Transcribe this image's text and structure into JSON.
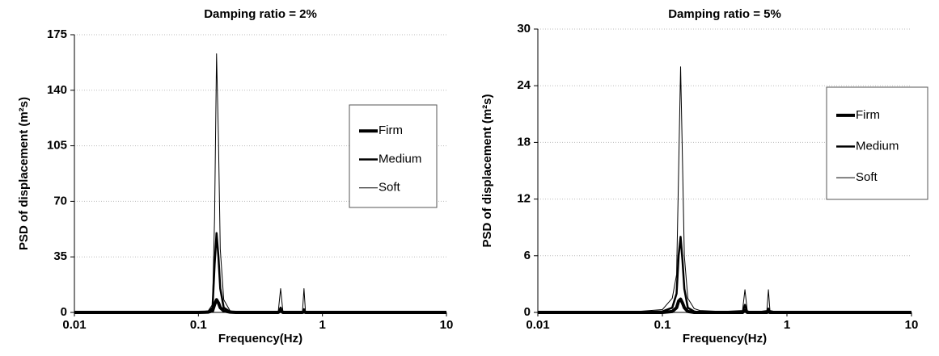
{
  "chart_data": [
    {
      "type": "line",
      "title": "Damping ratio = 2%",
      "x_label": "Frequency(Hz)",
      "y_label": "PSD of displacement (m²s)",
      "x_scale": "log",
      "xlim": [
        0.01,
        10
      ],
      "xticks": [
        0.01,
        0.1,
        1,
        10
      ],
      "ylim": [
        0,
        175
      ],
      "yticks": [
        0,
        35,
        70,
        105,
        140,
        175
      ],
      "grid": true,
      "legend": "center right",
      "x": [
        0.01,
        0.05,
        0.1,
        0.12,
        0.13,
        0.135,
        0.14,
        0.145,
        0.15,
        0.16,
        0.18,
        0.2,
        0.3,
        0.44,
        0.46,
        0.48,
        0.5,
        0.6,
        0.69,
        0.71,
        0.73,
        0.8,
        1,
        2,
        5,
        10
      ],
      "series": [
        {
          "name": "Firm",
          "color": "#000000",
          "line_width": 4,
          "values": [
            0,
            0,
            0,
            0.2,
            1,
            5,
            8,
            6,
            3,
            1,
            0.2,
            0,
            0,
            0,
            1,
            0,
            0,
            0,
            0,
            0.5,
            0,
            0,
            0,
            0,
            0,
            0
          ]
        },
        {
          "name": "Medium",
          "color": "#000000",
          "line_width": 2.5,
          "values": [
            0,
            0,
            0.1,
            0.5,
            3,
            30,
            50,
            35,
            15,
            3,
            0.5,
            0.1,
            0.1,
            0.1,
            3,
            0.2,
            0.1,
            0.1,
            0.1,
            2,
            0.1,
            0,
            0,
            0,
            0,
            0
          ]
        },
        {
          "name": "Soft",
          "color": "#000000",
          "line_width": 1,
          "values": [
            0,
            0,
            0.2,
            1,
            5,
            60,
            163,
            110,
            40,
            8,
            1,
            0.3,
            0.2,
            0.3,
            15,
            0.5,
            0.2,
            0.2,
            0.3,
            15,
            0.3,
            0.1,
            0.1,
            0,
            0,
            0
          ]
        }
      ]
    },
    {
      "type": "line",
      "title": "Damping ratio = 5%",
      "x_label": "Frequency(Hz)",
      "y_label": "PSD of displacement (m²s)",
      "x_scale": "log",
      "xlim": [
        0.01,
        10
      ],
      "xticks": [
        0.01,
        0.1,
        1,
        10
      ],
      "ylim": [
        0,
        30
      ],
      "yticks": [
        0,
        6,
        12,
        18,
        24,
        30
      ],
      "grid": true,
      "legend": "center right",
      "x": [
        0.01,
        0.05,
        0.1,
        0.12,
        0.13,
        0.135,
        0.14,
        0.145,
        0.15,
        0.16,
        0.18,
        0.2,
        0.3,
        0.44,
        0.46,
        0.48,
        0.5,
        0.6,
        0.69,
        0.71,
        0.73,
        0.8,
        1,
        2,
        5,
        10
      ],
      "series": [
        {
          "name": "Firm",
          "color": "#000000",
          "line_width": 4,
          "values": [
            0,
            0,
            0,
            0.1,
            0.5,
            1.2,
            1.4,
            1,
            0.5,
            0.1,
            0,
            0,
            0,
            0,
            0.2,
            0,
            0,
            0,
            0,
            0.1,
            0,
            0,
            0,
            0,
            0,
            0
          ]
        },
        {
          "name": "Medium",
          "color": "#000000",
          "line_width": 2.5,
          "values": [
            0,
            0,
            0.1,
            0.5,
            2,
            6,
            8,
            5.5,
            2.5,
            0.5,
            0.1,
            0,
            0,
            0,
            0.8,
            0,
            0,
            0,
            0,
            0.4,
            0,
            0,
            0,
            0,
            0,
            0
          ]
        },
        {
          "name": "Soft",
          "color": "#000000",
          "line_width": 1,
          "values": [
            0,
            0,
            0.3,
            1.5,
            4,
            15,
            26,
            16,
            6,
            1.5,
            0.4,
            0.2,
            0.1,
            0.2,
            2.4,
            0.2,
            0.1,
            0.1,
            0.2,
            2.4,
            0.2,
            0.1,
            0,
            0,
            0,
            0
          ]
        }
      ]
    }
  ]
}
